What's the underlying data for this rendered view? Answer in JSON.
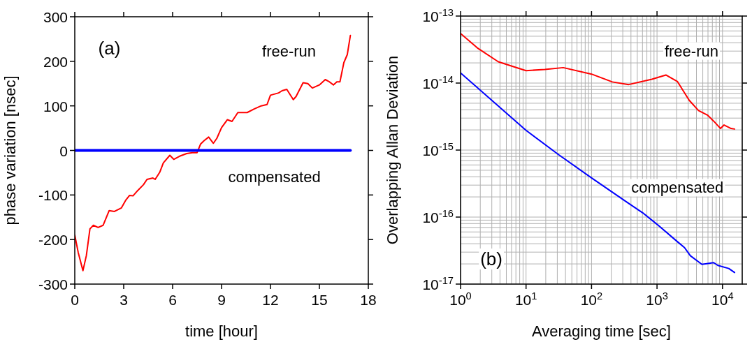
{
  "chart_data": [
    {
      "type": "line",
      "xlabel": "time [hour]",
      "ylabel": "phase variation [nsec]",
      "xlim": [
        0,
        18
      ],
      "xticks": [
        0,
        3,
        6,
        9,
        12,
        15,
        18
      ],
      "ylim": [
        -300,
        300
      ],
      "yticks": [
        -300,
        -200,
        -100,
        0,
        100,
        200,
        300
      ],
      "annotations": [
        "(a)"
      ],
      "series": [
        {
          "name": "free-run",
          "color": "#ff0000",
          "x": [
            0,
            0.21,
            0.5,
            0.71,
            0.93,
            1.14,
            1.43,
            1.74,
            2.11,
            2.43,
            2.86,
            3.14,
            3.36,
            3.57,
            3.86,
            4.21,
            4.43,
            4.79,
            4.93,
            5.21,
            5.43,
            5.83,
            6.07,
            6.43,
            6.86,
            7.21,
            7.5,
            7.71,
            7.93,
            8.21,
            8.5,
            8.71,
            9,
            9.36,
            9.64,
            10,
            10.57,
            11,
            11.43,
            11.79,
            12,
            12.5,
            12.71,
            13,
            13.4,
            13.57,
            14,
            14.29,
            14.57,
            15,
            15.36,
            15.57,
            15.86,
            16.07,
            16.26,
            16.5,
            16.71,
            16.9
          ],
          "values": [
            -190,
            -229,
            -270,
            -236,
            -176,
            -168,
            -173,
            -168,
            -135,
            -137,
            -129,
            -111,
            -101,
            -102,
            -90,
            -77,
            -65,
            -62,
            -65,
            -49,
            -28,
            -11,
            -20,
            -13,
            -7,
            -5,
            -5,
            14,
            22,
            30,
            16,
            27,
            51,
            69,
            65,
            85,
            85,
            93,
            100,
            103,
            124,
            129,
            134,
            137,
            114,
            121,
            152,
            150,
            140,
            147,
            159,
            155,
            147,
            154,
            154,
            197,
            215,
            258
          ]
        },
        {
          "name": "compensated",
          "color": "#0000ff",
          "x": [
            0,
            3,
            6,
            9,
            12,
            15,
            16.9
          ],
          "values": [
            0,
            0,
            0,
            0,
            0,
            0,
            0
          ]
        }
      ]
    },
    {
      "type": "line",
      "xlabel": "Averaging time [sec]",
      "ylabel": "Overlapping Allan Deviation",
      "log": "xy",
      "grid": true,
      "xlim": [
        1,
        20000
      ],
      "xticks": [
        {
          "value": 1,
          "label": "10$^{0}$"
        },
        {
          "value": 10,
          "label": "10$^{1}$"
        },
        {
          "value": 100,
          "label": "10$^{2}$"
        },
        {
          "value": 1000,
          "label": "10$^{3}$"
        },
        {
          "value": 10000,
          "label": "10$^{4}$"
        }
      ],
      "ylim": [
        1e-17,
        1e-13
      ],
      "yticks": [
        {
          "value": 1e-17,
          "label": "10$^{-17}$"
        },
        {
          "value": 1e-16,
          "label": "10$^{-16}$"
        },
        {
          "value": 1e-15,
          "label": "10$^{-15}$"
        },
        {
          "value": 1e-14,
          "label": "10$^{-14}$"
        },
        {
          "value": 1e-13,
          "label": "10$^{-13}$"
        }
      ],
      "annotations": [
        "(b)"
      ],
      "series": [
        {
          "name": "free-run",
          "color": "#ff0000",
          "x": [
            1,
            1.8,
            3.77,
            10,
            19.4,
            37,
            100,
            208,
            369,
            836,
            1365,
            2055,
            3090,
            4300,
            5950,
            7310,
            9340,
            10570,
            13500,
            15280
          ],
          "values": [
            5.5e-14,
            3.35e-14,
            2.08e-14,
            1.53e-14,
            1.6e-14,
            1.7e-14,
            1.36e-14,
            1.04e-14,
            9.5e-15,
            1.14e-14,
            1.32e-14,
            1.05e-14,
            5.56e-15,
            3.89e-15,
            3.3e-15,
            2.71e-15,
            2.1e-15,
            2.37e-15,
            2.1e-15,
            2.06e-15
          ]
        },
        {
          "name": "compensated",
          "color": "#0000ff",
          "x": [
            1,
            10,
            31.6,
            100,
            369,
            603,
            1000,
            2055,
            2630,
            3230,
            4850,
            7310,
            8500,
            12450,
            15280
          ],
          "values": [
            1.42e-14,
            1.97e-15,
            8.5e-16,
            3.84e-16,
            1.6e-16,
            1.16e-16,
            7.8e-17,
            4.28e-17,
            3.5e-17,
            2.65e-17,
            1.97e-17,
            2.09e-17,
            1.9e-17,
            1.71e-17,
            1.49e-17
          ]
        }
      ]
    }
  ]
}
